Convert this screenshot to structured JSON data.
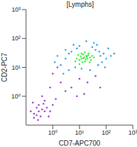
{
  "chart_data": {
    "type": "scatter",
    "title": "[Lymphs]",
    "x_label": "CD7-APC700",
    "y_label": "CD2-PC7",
    "log": true,
    "grid": false,
    "xlim": [
      0.1,
      1000
    ],
    "ylim": [
      0.1,
      1000
    ],
    "xticks": [
      {
        "value": 1,
        "label": "10⁰"
      },
      {
        "value": 10,
        "label": "10¹"
      },
      {
        "value": 100,
        "label": "10²"
      },
      {
        "value": 1000,
        "label": "10³"
      }
    ],
    "yticks": [
      {
        "value": 1,
        "label": "10⁰"
      },
      {
        "value": 10,
        "label": "10¹"
      },
      {
        "value": 100,
        "label": "10²"
      },
      {
        "value": 1000,
        "label": "10³"
      }
    ],
    "series": [
      {
        "color": "#9933cc",
        "marker": "dot",
        "x": [
          0.3,
          0.2,
          0.4,
          0.25,
          0.35,
          0.5,
          0.15,
          0.3,
          0.6,
          0.2,
          0.45,
          0.8,
          0.28,
          0.5,
          1,
          0.7,
          0.18,
          1.3,
          0.4,
          0.25,
          2,
          5,
          1,
          10,
          3,
          20,
          8,
          40,
          1.5,
          60,
          0.8,
          15
        ],
        "values": [
          0.3,
          0.25,
          0.35,
          0.4,
          0.2,
          0.3,
          0.3,
          0.5,
          0.4,
          0.18,
          0.55,
          0.3,
          0.15,
          0.7,
          0.5,
          0.2,
          0.6,
          0.8,
          1,
          0.22,
          3,
          2,
          6,
          4,
          1.5,
          3,
          1,
          5,
          10,
          2,
          2,
          1.2
        ]
      },
      {
        "color": "#2b9fe0",
        "marker": "dot",
        "x": [
          5,
          40,
          3,
          60,
          8,
          2,
          50,
          80,
          4,
          6,
          100,
          30,
          1.5,
          25,
          120,
          45,
          3,
          7,
          70,
          150,
          2.5,
          35,
          10,
          90,
          1.2,
          55,
          200,
          18,
          12,
          4
        ],
        "values": [
          35,
          40,
          20,
          25,
          45,
          12,
          12,
          30,
          8,
          60,
          20,
          50,
          25,
          8,
          45,
          60,
          40,
          10,
          15,
          25,
          6,
          70,
          55,
          10,
          15,
          35,
          30,
          80,
          9,
          30
        ]
      },
      {
        "color": "#33ee33",
        "marker": "dot",
        "x": [
          15,
          12,
          18,
          10,
          20,
          14,
          25,
          8,
          16,
          22,
          11,
          13,
          30,
          9,
          17,
          19,
          12,
          27,
          7,
          14,
          21,
          16,
          10,
          24,
          35
        ],
        "values": [
          22,
          20,
          25,
          18,
          20,
          28,
          22,
          20,
          16,
          30,
          24,
          15,
          25,
          27,
          19,
          23,
          30,
          18,
          16,
          21,
          26,
          33,
          13,
          15,
          22
        ]
      }
    ]
  }
}
